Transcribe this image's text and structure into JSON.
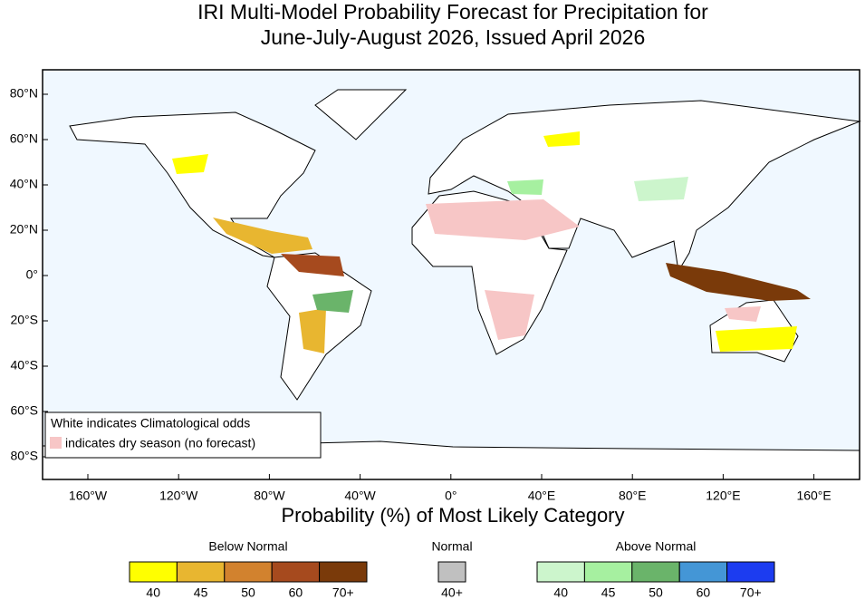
{
  "title": [
    "IRI Multi-Model Probability Forecast for Precipitation for",
    "June-July-August 2026, Issued April 2026"
  ],
  "map": {
    "lat_labels": [
      "80°N",
      "60°N",
      "40°N",
      "20°N",
      "0°",
      "20°S",
      "40°S",
      "60°S",
      "80°S"
    ],
    "lon_labels": [
      "160°W",
      "120°W",
      "80°W",
      "40°W",
      "0°",
      "40°E",
      "80°E",
      "120°E",
      "160°E"
    ]
  },
  "note": {
    "line1": "White indicates Climatological odds",
    "line2": "indicates dry season (no forecast)",
    "dry_color": "#f7c6c6"
  },
  "xlabel": "Probability (%) of Most Likely Category",
  "legend": {
    "below": {
      "title": "Below Normal",
      "colors": [
        "#ffff00",
        "#e8b630",
        "#d2822e",
        "#a64a1e",
        "#7a3a0a"
      ],
      "labels": [
        "40",
        "45",
        "50",
        "60",
        "70+"
      ]
    },
    "normal": {
      "title": "Normal",
      "colors": [
        "#c0c0c0"
      ],
      "labels": [
        "40+"
      ]
    },
    "above": {
      "title": "Above Normal",
      "colors": [
        "#ccf5cc",
        "#a6f0a0",
        "#6ab46a",
        "#4496d6",
        "#1c3cf0"
      ],
      "labels": [
        "40",
        "45",
        "50",
        "60",
        "70+"
      ]
    }
  }
}
